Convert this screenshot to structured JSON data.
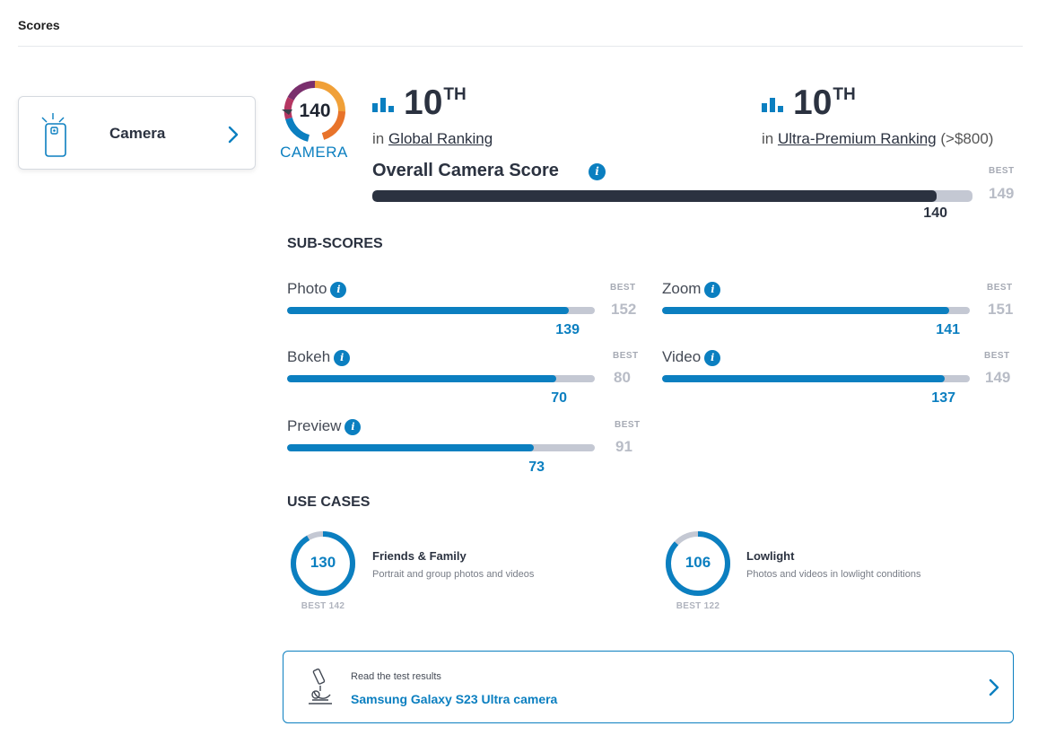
{
  "header": {
    "title": "Scores"
  },
  "tab": {
    "label": "Camera"
  },
  "badge": {
    "score": "140",
    "label": "CAMERA"
  },
  "ranking_global": {
    "rank": "10",
    "suffix": "TH",
    "in": "in",
    "link": "Global Ranking"
  },
  "ranking_segment": {
    "rank": "10",
    "suffix": "TH",
    "in": "in",
    "link": "Ultra-Premium Ranking",
    "extra": "(>$800)"
  },
  "overall": {
    "title": "Overall Camera Score",
    "score": 140,
    "best_label": "BEST",
    "best": 149
  },
  "subscores": {
    "heading": "SUB-SCORES",
    "best_label": "BEST",
    "items": [
      {
        "label": "Photo",
        "score": 139,
        "best": 152
      },
      {
        "label": "Zoom",
        "score": 141,
        "best": 151
      },
      {
        "label": "Bokeh",
        "score": 70,
        "best": 80
      },
      {
        "label": "Video",
        "score": 137,
        "best": 149
      },
      {
        "label": "Preview",
        "score": 73,
        "best": 91
      }
    ]
  },
  "use_cases": {
    "heading": "USE CASES",
    "items": [
      {
        "score": 130,
        "best": 142,
        "best_text": "BEST 142",
        "title": "Friends & Family",
        "desc": "Portrait and group photos and videos"
      },
      {
        "score": 106,
        "best": 122,
        "best_text": "BEST 122",
        "title": "Lowlight",
        "desc": "Photos and videos in lowlight conditions"
      }
    ]
  },
  "results": {
    "kicker": "Read the test results",
    "link": "Samsung Galaxy S23 Ultra camera"
  },
  "colors": {
    "accent": "#0b7fc0",
    "dark": "#2b3240",
    "track": "#c4c8d3",
    "best": "#b8bcc6"
  }
}
